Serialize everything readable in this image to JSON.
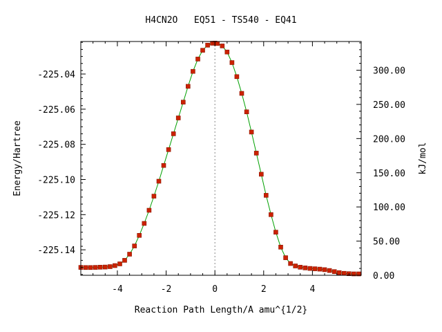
{
  "chart_data": {
    "type": "line",
    "title": "H4CN2O   EQ51 - TS540 - EQ41",
    "xlabel": "Reaction Path Length/A amu^{1/2}",
    "ylabel": "Energy/Hartree",
    "y2label": "kJ/mol",
    "xlim": [
      -5.5,
      6.0
    ],
    "ylim": [
      -225.1545,
      -225.0215
    ],
    "y2lim": [
      0.0,
      342.0
    ],
    "grid": false,
    "legend": "none",
    "x_ticks": [
      -4,
      -2,
      0,
      2,
      4
    ],
    "x_tick_labels": [
      "-4",
      "-2",
      "0",
      "2",
      "4"
    ],
    "y_ticks": [
      -225.04,
      -225.06,
      -225.08,
      -225.1,
      -225.12,
      -225.14
    ],
    "y_tick_labels": [
      "-225.04",
      "-225.06",
      "-225.08",
      "-225.10",
      "-225.12",
      "-225.14"
    ],
    "y2_ticks": [
      300,
      250,
      200,
      150,
      100,
      50,
      0
    ],
    "y2_tick_labels": [
      "300.00",
      "250.00",
      "200.00",
      "150.00",
      "100.00",
      "50.00",
      "0.00"
    ],
    "ts_x": 0,
    "colors": {
      "curve": "#00a000",
      "points": "#cc2200",
      "ts_line": "#888888"
    },
    "series": [
      {
        "x": [
          -5.5,
          -5.3,
          -5.1,
          -4.9,
          -4.7,
          -4.5,
          -4.3,
          -4.1,
          -3.9,
          -3.7,
          -3.5,
          -3.3,
          -3.1,
          -2.9,
          -2.7,
          -2.5,
          -2.3,
          -2.1,
          -1.9,
          -1.7,
          -1.5,
          -1.3,
          -1.1,
          -0.9,
          -0.7,
          -0.5,
          -0.3,
          -0.1,
          0.0,
          0.1,
          0.3,
          0.5,
          0.7,
          0.9,
          1.1,
          1.3,
          1.5,
          1.7,
          1.9,
          2.1,
          2.3,
          2.5,
          2.7,
          2.9,
          3.1,
          3.3,
          3.5,
          3.7,
          3.9,
          4.1,
          4.3,
          4.5,
          4.7,
          4.9,
          5.1,
          5.3,
          5.5,
          5.7,
          5.9
        ],
        "y": [
          -225.15,
          -225.1501,
          -225.1501,
          -225.15,
          -225.1499,
          -225.1498,
          -225.1496,
          -225.149,
          -225.148,
          -225.146,
          -225.1425,
          -225.1378,
          -225.1318,
          -225.125,
          -225.1175,
          -225.1095,
          -225.101,
          -225.092,
          -225.083,
          -225.074,
          -225.065,
          -225.056,
          -225.047,
          -225.0385,
          -225.0315,
          -225.0265,
          -225.0236,
          -225.0225,
          -225.0224,
          -225.0226,
          -225.024,
          -225.0275,
          -225.0335,
          -225.0415,
          -225.051,
          -225.0615,
          -225.073,
          -225.085,
          -225.097,
          -225.109,
          -225.12,
          -225.13,
          -225.1385,
          -225.1445,
          -225.1478,
          -225.1492,
          -225.1499,
          -225.1503,
          -225.1506,
          -225.1508,
          -225.151,
          -225.1513,
          -225.1518,
          -225.1524,
          -225.153,
          -225.1534,
          -225.1536,
          -225.1537,
          -225.1537
        ]
      }
    ]
  }
}
